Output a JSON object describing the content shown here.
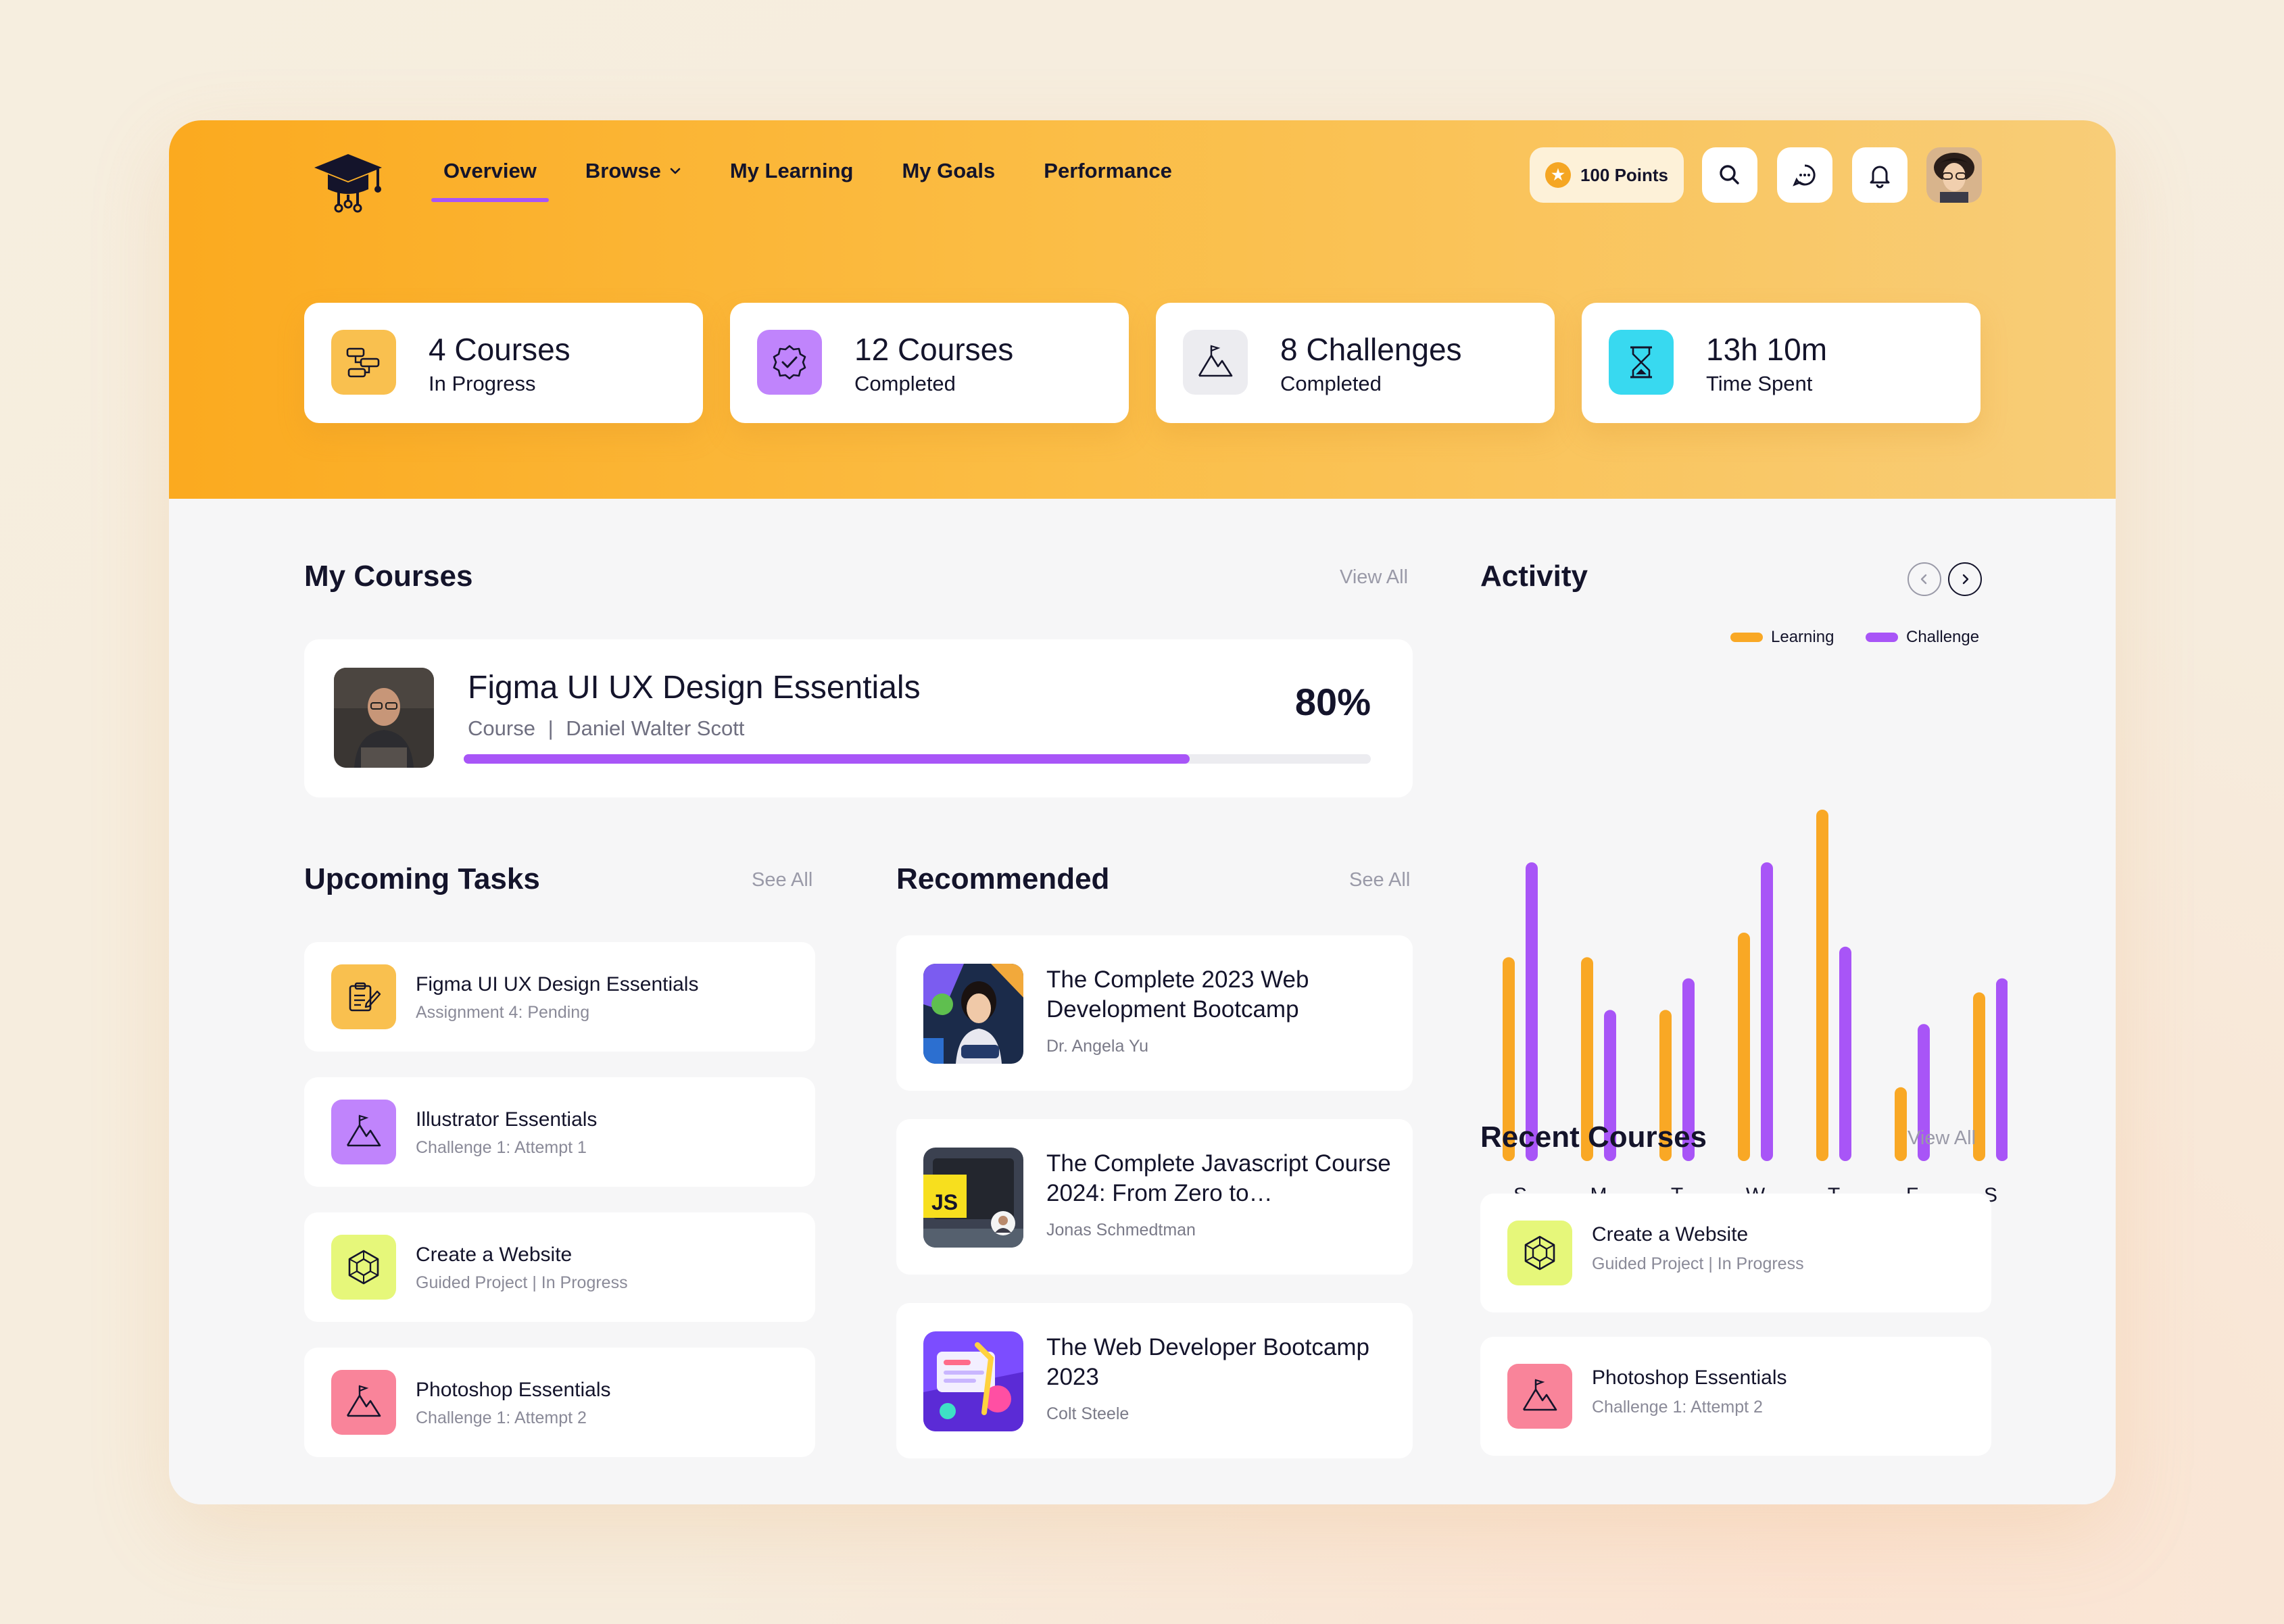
{
  "header": {
    "nav": [
      {
        "label": "Overview",
        "active": true
      },
      {
        "label": "Browse",
        "dropdown": true
      },
      {
        "label": "My Learning"
      },
      {
        "label": "My Goals"
      },
      {
        "label": "Performance"
      }
    ],
    "points_label": "100 Points",
    "icons": [
      "graduation-cap-logo",
      "search-icon",
      "chat-icon",
      "bell-icon",
      "avatar"
    ]
  },
  "stats": [
    {
      "value": "4 Courses",
      "label": "In Progress",
      "icon": "flow-icon",
      "color": "#f9c04f"
    },
    {
      "value": "12 Courses",
      "label": "Completed",
      "icon": "check-badge-icon",
      "color": "#c084fc"
    },
    {
      "value": "8 Challenges",
      "label": "Completed",
      "icon": "mountain-flag-icon",
      "color": "#ececf0"
    },
    {
      "value": "13h 10m",
      "label": "Time Spent",
      "icon": "hourglass-icon",
      "color": "#38d9f0"
    }
  ],
  "my_courses": {
    "title": "My Courses",
    "view_all": "View All",
    "course": {
      "title": "Figma UI UX Design Essentials",
      "type": "Course",
      "separator": "|",
      "instructor": "Daniel Walter Scott",
      "progress_label": "80%",
      "progress": 0.8
    }
  },
  "upcoming_tasks": {
    "title": "Upcoming Tasks",
    "see_all": "See All",
    "items": [
      {
        "title": "Figma UI UX Design Essentials",
        "sub": "Assignment 4: Pending",
        "icon": "assignment-icon",
        "color": "#f9c04f"
      },
      {
        "title": "Illustrator Essentials",
        "sub": "Challenge 1: Attempt 1",
        "icon": "mountain-flag-icon",
        "color": "#c084fc"
      },
      {
        "title": "Create a Website",
        "sub": "Guided Project | In Progress",
        "icon": "cube-icon",
        "color": "#e6f77a"
      },
      {
        "title": "Photoshop Essentials",
        "sub": "Challenge 1: Attempt 2",
        "icon": "mountain-flag-icon",
        "color": "#f9849a"
      }
    ]
  },
  "recommended": {
    "title": "Recommended",
    "see_all": "See All",
    "items": [
      {
        "title": "The Complete 2023 Web Development Bootcamp",
        "author": "Dr. Angela Yu",
        "thumb": "web-bootcamp-thumbnail"
      },
      {
        "title": "The Complete Javascript Course 2024: From Zero to…",
        "author": "Jonas Schmedtman",
        "thumb": "javascript-thumbnail"
      },
      {
        "title": "The  Web Developer Bootcamp 2023",
        "author": "Colt Steele",
        "thumb": "web-developer-thumbnail"
      }
    ]
  },
  "activity": {
    "title": "Activity",
    "legend": [
      {
        "name": "Learning",
        "color": "#f9a825"
      },
      {
        "name": "Challenge",
        "color": "#a855f7"
      }
    ]
  },
  "chart_data": {
    "type": "bar",
    "title": "Activity",
    "categories": [
      "S",
      "M",
      "T",
      "W",
      "T",
      "F",
      "S"
    ],
    "series": [
      {
        "name": "Learning",
        "color": "#f9a825",
        "values": [
          58,
          58,
          43,
          65,
          100,
          21,
          48
        ]
      },
      {
        "name": "Challenge",
        "color": "#a855f7",
        "values": [
          85,
          43,
          52,
          85,
          61,
          39,
          52
        ]
      }
    ],
    "ylim": [
      0,
      100
    ],
    "grid": false,
    "legend_position": "top-right"
  },
  "recent_courses": {
    "title": "Recent Courses",
    "view_all": "View All",
    "items": [
      {
        "title": "Create a Website",
        "sub": "Guided Project | In Progress",
        "icon": "cube-icon",
        "color": "#e6f77a"
      },
      {
        "title": "Photoshop Essentials",
        "sub": "Challenge 1: Attempt 2",
        "icon": "mountain-flag-icon",
        "color": "#f9849a"
      }
    ]
  }
}
